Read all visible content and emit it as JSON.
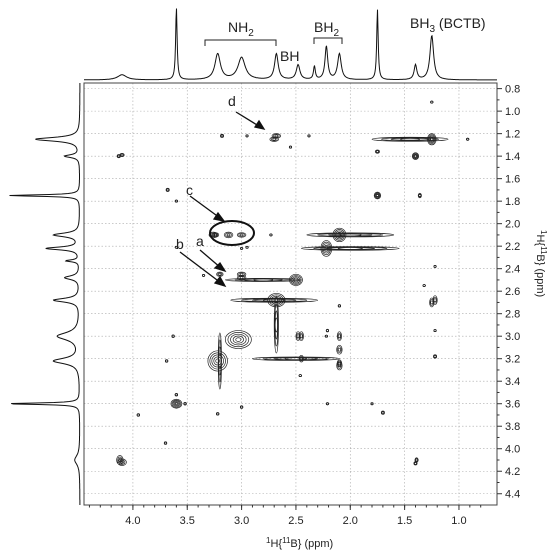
{
  "chart_data": {
    "type": "2D NMR COSY contour plot",
    "xlabel_main": "H",
    "xlabel_sup1": "1",
    "xlabel_sup2": "11",
    "xlabel_rest": "B} (ppm)",
    "ylabel_main": "H",
    "ylabel_sup1": "1",
    "ylabel_sup2": "11",
    "ylabel_rest": "B} (ppm)",
    "xlim": [
      4.45,
      0.65
    ],
    "ylim": [
      0.75,
      4.5
    ],
    "x_ticks": [
      "4.0",
      "3.5",
      "3.0",
      "2.5",
      "2.0",
      "1.5",
      "1.0"
    ],
    "x_tick_values": [
      4.0,
      3.5,
      3.0,
      2.5,
      2.0,
      1.5,
      1.0
    ],
    "y_ticks": [
      "0.8",
      "1.0",
      "1.2",
      "1.4",
      "1.6",
      "1.8",
      "2.0",
      "2.2",
      "2.4",
      "2.6",
      "2.8",
      "3.0",
      "3.2",
      "3.4",
      "3.6",
      "3.8",
      "4.0",
      "4.2",
      "4.4"
    ],
    "y_tick_values": [
      0.8,
      1.0,
      1.2,
      1.4,
      1.6,
      1.8,
      2.0,
      2.2,
      2.4,
      2.6,
      2.8,
      3.0,
      3.2,
      3.4,
      3.6,
      3.8,
      4.0,
      4.2,
      4.4
    ],
    "grid": true,
    "top_projection_labels": [
      {
        "text": "NH",
        "sub": "2"
      },
      {
        "text": "BH",
        "sub": ""
      },
      {
        "text": "BH",
        "sub": "2"
      },
      {
        "text": "BH",
        "sub": "3",
        "suffix": " (BCTB)"
      }
    ],
    "annotations": [
      "a",
      "b",
      "c",
      "d"
    ],
    "peaks_1d": [
      {
        "ppm": 4.1,
        "h": 0.07,
        "w": 0.05
      },
      {
        "ppm": 3.6,
        "h": 0.98,
        "w": 0.008
      },
      {
        "ppm": 3.22,
        "h": 0.35,
        "w": 0.03
      },
      {
        "ppm": 3.0,
        "h": 0.3,
        "w": 0.04
      },
      {
        "ppm": 2.68,
        "h": 0.35,
        "w": 0.02
      },
      {
        "ppm": 2.48,
        "h": 0.2,
        "w": 0.02
      },
      {
        "ppm": 2.33,
        "h": 0.18,
        "w": 0.01
      },
      {
        "ppm": 2.22,
        "h": 0.45,
        "w": 0.015
      },
      {
        "ppm": 2.1,
        "h": 0.35,
        "w": 0.02
      },
      {
        "ppm": 1.75,
        "h": 0.95,
        "w": 0.008
      },
      {
        "ppm": 1.4,
        "h": 0.2,
        "w": 0.015
      },
      {
        "ppm": 1.25,
        "h": 0.6,
        "w": 0.02
      }
    ],
    "diagonal_peaks": [
      {
        "ppm": 3.6,
        "sx": 0.05,
        "sy": 0.04
      },
      {
        "ppm": 3.22,
        "sx": 0.09,
        "sy": 0.09
      },
      {
        "ppm": 3.03,
        "sx": 0.12,
        "sy": 0.08
      },
      {
        "ppm": 2.68,
        "sx": 0.08,
        "sy": 0.06
      },
      {
        "ppm": 2.5,
        "sx": 0.06,
        "sy": 0.05
      },
      {
        "ppm": 2.22,
        "sx": 0.05,
        "sy": 0.07
      },
      {
        "ppm": 2.1,
        "sx": 0.06,
        "sy": 0.06
      },
      {
        "ppm": 1.75,
        "sx": 0.03,
        "sy": 0.03
      },
      {
        "ppm": 1.4,
        "sx": 0.03,
        "sy": 0.03
      },
      {
        "ppm": 1.25,
        "sx": 0.04,
        "sy": 0.05
      }
    ],
    "cross_peaks": [
      {
        "x": 4.1,
        "y": 1.39,
        "sx": 0.02,
        "sy": 0.015
      },
      {
        "x": 4.1,
        "y": 4.12,
        "sx": 0.04,
        "sy": 0.03
      },
      {
        "x": 3.6,
        "y": 1.8,
        "sx": 0.01,
        "sy": 0.01
      },
      {
        "x": 3.6,
        "y": 2.21,
        "sx": 0.01,
        "sy": 0.01
      },
      {
        "x": 3.7,
        "y": 3.95,
        "sx": 0.012,
        "sy": 0.012
      },
      {
        "x": 3.52,
        "y": 3.6,
        "sx": 0.012,
        "sy": 0.012
      },
      {
        "x": 3.22,
        "y": 3.69,
        "sx": 0.012,
        "sy": 0.012
      },
      {
        "x": 3.0,
        "y": 3.63,
        "sx": 0.012,
        "sy": 0.012
      },
      {
        "x": 3.35,
        "y": 2.46,
        "sx": 0.01,
        "sy": 0.01
      },
      {
        "x": 3.26,
        "y": 2.1,
        "sx": 0.04,
        "sy": 0.025
      },
      {
        "x": 3.12,
        "y": 2.1,
        "sx": 0.04,
        "sy": 0.025
      },
      {
        "x": 3.0,
        "y": 2.48,
        "sx": 0.04,
        "sy": 0.02
      },
      {
        "x": 2.7,
        "y": 1.25,
        "sx": 0.04,
        "sy": 0.02
      },
      {
        "x": 2.55,
        "y": 1.32,
        "sx": 0.01,
        "sy": 0.01
      },
      {
        "x": 2.95,
        "y": 2.21,
        "sx": 0.012,
        "sy": 0.01
      },
      {
        "x": 2.73,
        "y": 2.1,
        "sx": 0.012,
        "sy": 0.01
      },
      {
        "x": 2.45,
        "y": 3.0,
        "sx": 0.02,
        "sy": 0.04
      },
      {
        "x": 2.45,
        "y": 3.2,
        "sx": 0.02,
        "sy": 0.03
      },
      {
        "x": 2.1,
        "y": 3.0,
        "sx": 0.02,
        "sy": 0.04
      },
      {
        "x": 2.1,
        "y": 3.24,
        "sx": 0.02,
        "sy": 0.03
      },
      {
        "x": 2.22,
        "y": 3.0,
        "sx": 0.01,
        "sy": 0.01
      },
      {
        "x": 1.7,
        "y": 3.68,
        "sx": 0.015,
        "sy": 0.015
      },
      {
        "x": 1.4,
        "y": 4.13,
        "sx": 0.015,
        "sy": 0.015
      },
      {
        "x": 1.22,
        "y": 2.68,
        "sx": 0.02,
        "sy": 0.04
      },
      {
        "x": 1.22,
        "y": 3.18,
        "sx": 0.015,
        "sy": 0.015
      },
      {
        "x": 1.22,
        "y": 2.38,
        "sx": 0.01,
        "sy": 0.01
      },
      {
        "x": 1.22,
        "y": 2.95,
        "sx": 0.01,
        "sy": 0.01
      },
      {
        "x": 1.75,
        "y": 1.36,
        "sx": 0.02,
        "sy": 0.015
      },
      {
        "x": 1.25,
        "y": 0.92,
        "sx": 0.01,
        "sy": 0.01
      }
    ],
    "ridges": [
      {
        "x": 1.45,
        "y": 1.25,
        "sx": 0.35,
        "sy": 0.018
      },
      {
        "x": 2.0,
        "y": 2.1,
        "sx": 0.4,
        "sy": 0.018
      },
      {
        "x": 2.0,
        "y": 2.22,
        "sx": 0.45,
        "sy": 0.016
      },
      {
        "x": 2.5,
        "y": 3.2,
        "sx": 0.4,
        "sy": 0.015
      },
      {
        "x": 2.7,
        "y": 2.68,
        "sx": 0.4,
        "sy": 0.018
      },
      {
        "x": 2.8,
        "y": 2.5,
        "sx": 0.35,
        "sy": 0.014
      },
      {
        "x": 3.2,
        "y": 3.22,
        "sx": 0.015,
        "sy": 0.25
      },
      {
        "x": 2.68,
        "y": 2.9,
        "sx": 0.02,
        "sy": 0.25
      }
    ]
  }
}
